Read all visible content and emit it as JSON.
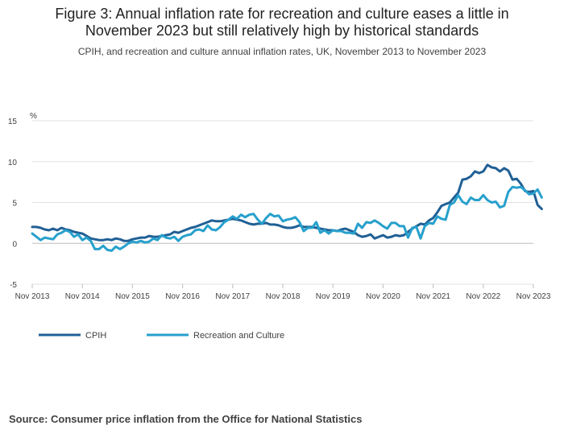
{
  "chart_data": {
    "type": "line",
    "title_line1": "Figure 3: Annual inflation rate for recreation and culture eases a little in",
    "title_line2": "November 2023 but still relatively high by historical standards",
    "subtitle": "CPIH, and recreation and culture annual inflation rates, UK, November 2013 to November 2023",
    "ylabel": "%",
    "ylim": [
      -5,
      15
    ],
    "yticks": [
      "15",
      "10",
      "5",
      "0",
      "-5"
    ],
    "xticks": [
      "Nov 2013",
      "Nov 2014",
      "Nov 2015",
      "Nov 2016",
      "Nov 2017",
      "Nov 2018",
      "Nov 2019",
      "Nov 2020",
      "Nov 2021",
      "Nov 2022",
      "Nov 2023"
    ],
    "source": "Source: Consumer price inflation from the Office for National Statistics",
    "series": [
      {
        "name": "CPIH",
        "color": "#206095",
        "values": [
          2.0,
          2.0,
          1.9,
          1.7,
          1.6,
          1.8,
          1.6,
          1.9,
          1.7,
          1.6,
          1.4,
          1.3,
          1.2,
          0.9,
          0.6,
          0.5,
          0.4,
          0.4,
          0.5,
          0.4,
          0.6,
          0.5,
          0.3,
          0.3,
          0.5,
          0.6,
          0.7,
          0.7,
          0.9,
          0.8,
          0.8,
          0.9,
          1.0,
          1.1,
          1.4,
          1.3,
          1.5,
          1.7,
          1.9,
          2.0,
          2.2,
          2.4,
          2.6,
          2.8,
          2.7,
          2.7,
          2.8,
          2.9,
          3.0,
          2.9,
          2.8,
          2.6,
          2.4,
          2.3,
          2.4,
          2.4,
          2.5,
          2.3,
          2.3,
          2.2,
          2.0,
          1.9,
          1.9,
          2.0,
          2.2,
          2.0,
          2.0,
          2.0,
          1.9,
          1.8,
          1.7,
          1.6,
          1.6,
          1.5,
          1.7,
          1.8,
          1.6,
          1.4,
          1.0,
          0.8,
          0.9,
          1.1,
          0.6,
          0.8,
          1.0,
          0.7,
          0.8,
          1.0,
          0.9,
          1.0,
          1.4,
          1.8,
          2.1,
          2.4,
          2.3,
          2.8,
          3.1,
          3.8,
          4.6,
          4.8,
          5.0,
          5.6,
          6.2,
          7.8,
          7.9,
          8.2,
          8.8,
          8.6,
          8.8,
          9.6,
          9.3,
          9.2,
          8.8,
          9.2,
          8.9,
          7.8,
          7.9,
          7.3,
          6.4,
          6.3,
          6.4,
          4.7,
          4.2
        ],
        "values_note": "monthly, Nov 2013 to Nov 2023"
      },
      {
        "name": "Recreation and Culture",
        "color": "#27a0cc",
        "values": [
          1.2,
          0.8,
          0.4,
          0.7,
          0.6,
          0.5,
          1.1,
          1.3,
          1.6,
          1.4,
          0.8,
          1.1,
          0.4,
          0.7,
          0.3,
          -0.7,
          -0.7,
          -0.3,
          -0.8,
          -0.9,
          -0.4,
          -0.7,
          -0.4,
          0.0,
          0.2,
          0.1,
          0.3,
          0.1,
          0.2,
          0.6,
          0.4,
          1.0,
          0.7,
          0.6,
          0.8,
          0.3,
          0.8,
          1.0,
          1.1,
          1.6,
          1.7,
          1.5,
          2.2,
          1.7,
          1.6,
          2.0,
          2.6,
          2.9,
          3.3,
          3.0,
          3.5,
          3.2,
          3.5,
          3.6,
          2.9,
          2.4,
          3.1,
          3.6,
          3.3,
          3.4,
          2.7,
          2.9,
          3.0,
          3.2,
          2.6,
          1.5,
          1.9,
          1.9,
          2.6,
          1.3,
          1.6,
          1.2,
          1.6,
          1.5,
          1.5,
          1.3,
          1.3,
          1.2,
          2.4,
          1.9,
          2.6,
          2.5,
          2.8,
          2.5,
          2.1,
          1.8,
          2.5,
          2.5,
          2.1,
          2.1,
          0.7,
          1.9,
          2.0,
          0.6,
          2.1,
          2.5,
          2.4,
          3.3,
          3.0,
          2.9,
          4.7,
          5.0,
          5.9,
          5.1,
          4.8,
          5.6,
          5.3,
          5.3,
          5.9,
          5.3,
          5.0,
          5.1,
          4.4,
          4.6,
          6.3,
          6.9,
          6.8,
          6.9,
          6.5,
          6.0,
          6.1,
          6.6,
          5.6
        ],
        "values_note": "monthly, Nov 2013 to Nov 2023"
      }
    ],
    "legend_position": "bottom-left"
  }
}
